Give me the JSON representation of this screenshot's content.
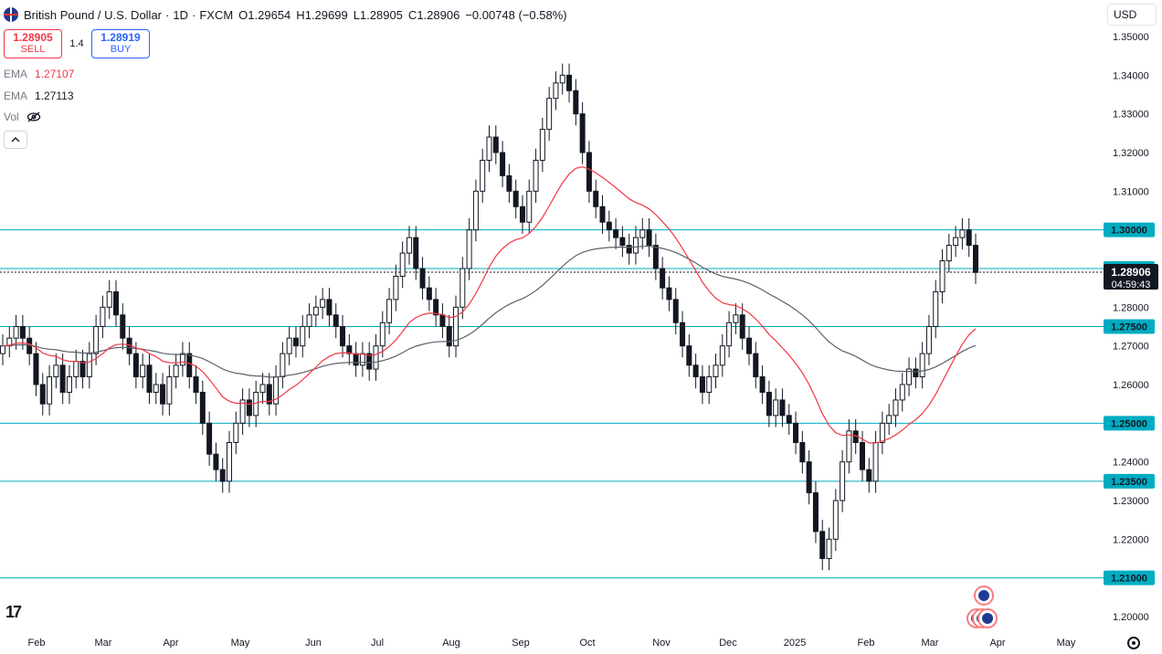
{
  "header": {
    "symbol": "British Pound / U.S. Dollar",
    "interval": "1D",
    "exchange": "FXCM",
    "ohlc": [
      {
        "k": "O",
        "v": "1.29654"
      },
      {
        "k": "H",
        "v": "1.29699"
      },
      {
        "k": "L",
        "v": "1.28905"
      },
      {
        "k": "C",
        "v": "1.28906"
      }
    ],
    "change": "−0.00748 (−0.58%)"
  },
  "trade": {
    "sell_price": "1.28905",
    "sell_label": "SELL",
    "spread": "1.4",
    "buy_price": "1.28919",
    "buy_label": "BUY"
  },
  "indicators": [
    {
      "name": "EMA",
      "value": "1.27107",
      "color": "#f23645"
    },
    {
      "name": "EMA",
      "value": "1.27113",
      "color": "#131722"
    },
    {
      "name": "Vol",
      "value": ""
    }
  ],
  "collapse_icon": "chevron-up-icon",
  "currency": "USD",
  "colors": {
    "bull": "#131722",
    "bear": "#131722",
    "ema_fast": "#f23645",
    "ema_slow": "#5d606b",
    "hline": "#00acc1",
    "price_line": "#131722",
    "current_price_bg": "#131722"
  },
  "current_price": "1.28906",
  "countdown": "04:59:43",
  "chart_data": {
    "type": "candlestick",
    "y_range": [
      1.2,
      1.35
    ],
    "y_ticks": [
      "1.35000",
      "1.34000",
      "1.33000",
      "1.32000",
      "1.31000",
      "1.30000",
      "1.29000",
      "1.28000",
      "1.27000",
      "1.26000",
      "1.25000",
      "1.24000",
      "1.23000",
      "1.22000",
      "1.21000",
      "1.20000"
    ],
    "x_labels": [
      "Feb",
      "Mar",
      "Apr",
      "May",
      "Jun",
      "Jul",
      "Aug",
      "Sep",
      "Oct",
      "Nov",
      "Dec",
      "2025",
      "Feb",
      "Mar",
      "Apr",
      "May"
    ],
    "horizontal_levels": [
      "1.30000",
      "1.29000",
      "1.27500",
      "1.25000",
      "1.23500",
      "1.21000"
    ],
    "closes": [
      1.27,
      1.272,
      1.275,
      1.272,
      1.268,
      1.26,
      1.255,
      1.262,
      1.265,
      1.258,
      1.262,
      1.266,
      1.262,
      1.268,
      1.275,
      1.28,
      1.284,
      1.278,
      1.272,
      1.268,
      1.262,
      1.265,
      1.258,
      1.26,
      1.255,
      1.262,
      1.265,
      1.268,
      1.262,
      1.258,
      1.25,
      1.242,
      1.238,
      1.235,
      1.245,
      1.25,
      1.256,
      1.252,
      1.258,
      1.26,
      1.255,
      1.262,
      1.268,
      1.272,
      1.27,
      1.275,
      1.278,
      1.28,
      1.282,
      1.278,
      1.275,
      1.27,
      1.268,
      1.265,
      1.268,
      1.264,
      1.27,
      1.276,
      1.282,
      1.288,
      1.294,
      1.298,
      1.29,
      1.285,
      1.282,
      1.278,
      1.275,
      1.27,
      1.28,
      1.29,
      1.3,
      1.31,
      1.318,
      1.324,
      1.32,
      1.314,
      1.31,
      1.306,
      1.302,
      1.31,
      1.318,
      1.326,
      1.334,
      1.338,
      1.34,
      1.336,
      1.33,
      1.32,
      1.31,
      1.306,
      1.302,
      1.3,
      1.298,
      1.296,
      1.294,
      1.298,
      1.3,
      1.296,
      1.29,
      1.285,
      1.282,
      1.276,
      1.27,
      1.265,
      1.262,
      1.258,
      1.262,
      1.265,
      1.27,
      1.276,
      1.278,
      1.272,
      1.268,
      1.262,
      1.258,
      1.252,
      1.256,
      1.252,
      1.25,
      1.245,
      1.24,
      1.232,
      1.222,
      1.215,
      1.22,
      1.23,
      1.24,
      1.248,
      1.245,
      1.238,
      1.235,
      1.245,
      1.25,
      1.252,
      1.256,
      1.26,
      1.264,
      1.262,
      1.268,
      1.275,
      1.284,
      1.292,
      1.296,
      1.298,
      1.3,
      1.296,
      1.289
    ]
  }
}
